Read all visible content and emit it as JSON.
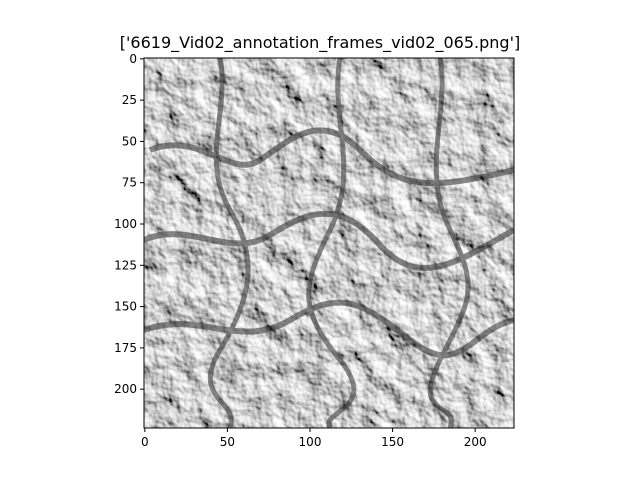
{
  "figure": {
    "title": "['6619_Vid02_annotation_frames_vid02_065.png']"
  },
  "image": {
    "description_icon": "grayscale-texture-image",
    "colormap": "gray"
  },
  "axes": {
    "x_ticks": [
      "0",
      "50",
      "100",
      "150",
      "200"
    ],
    "y_ticks": [
      "0",
      "25",
      "50",
      "75",
      "100",
      "125",
      "150",
      "175",
      "200"
    ]
  }
}
